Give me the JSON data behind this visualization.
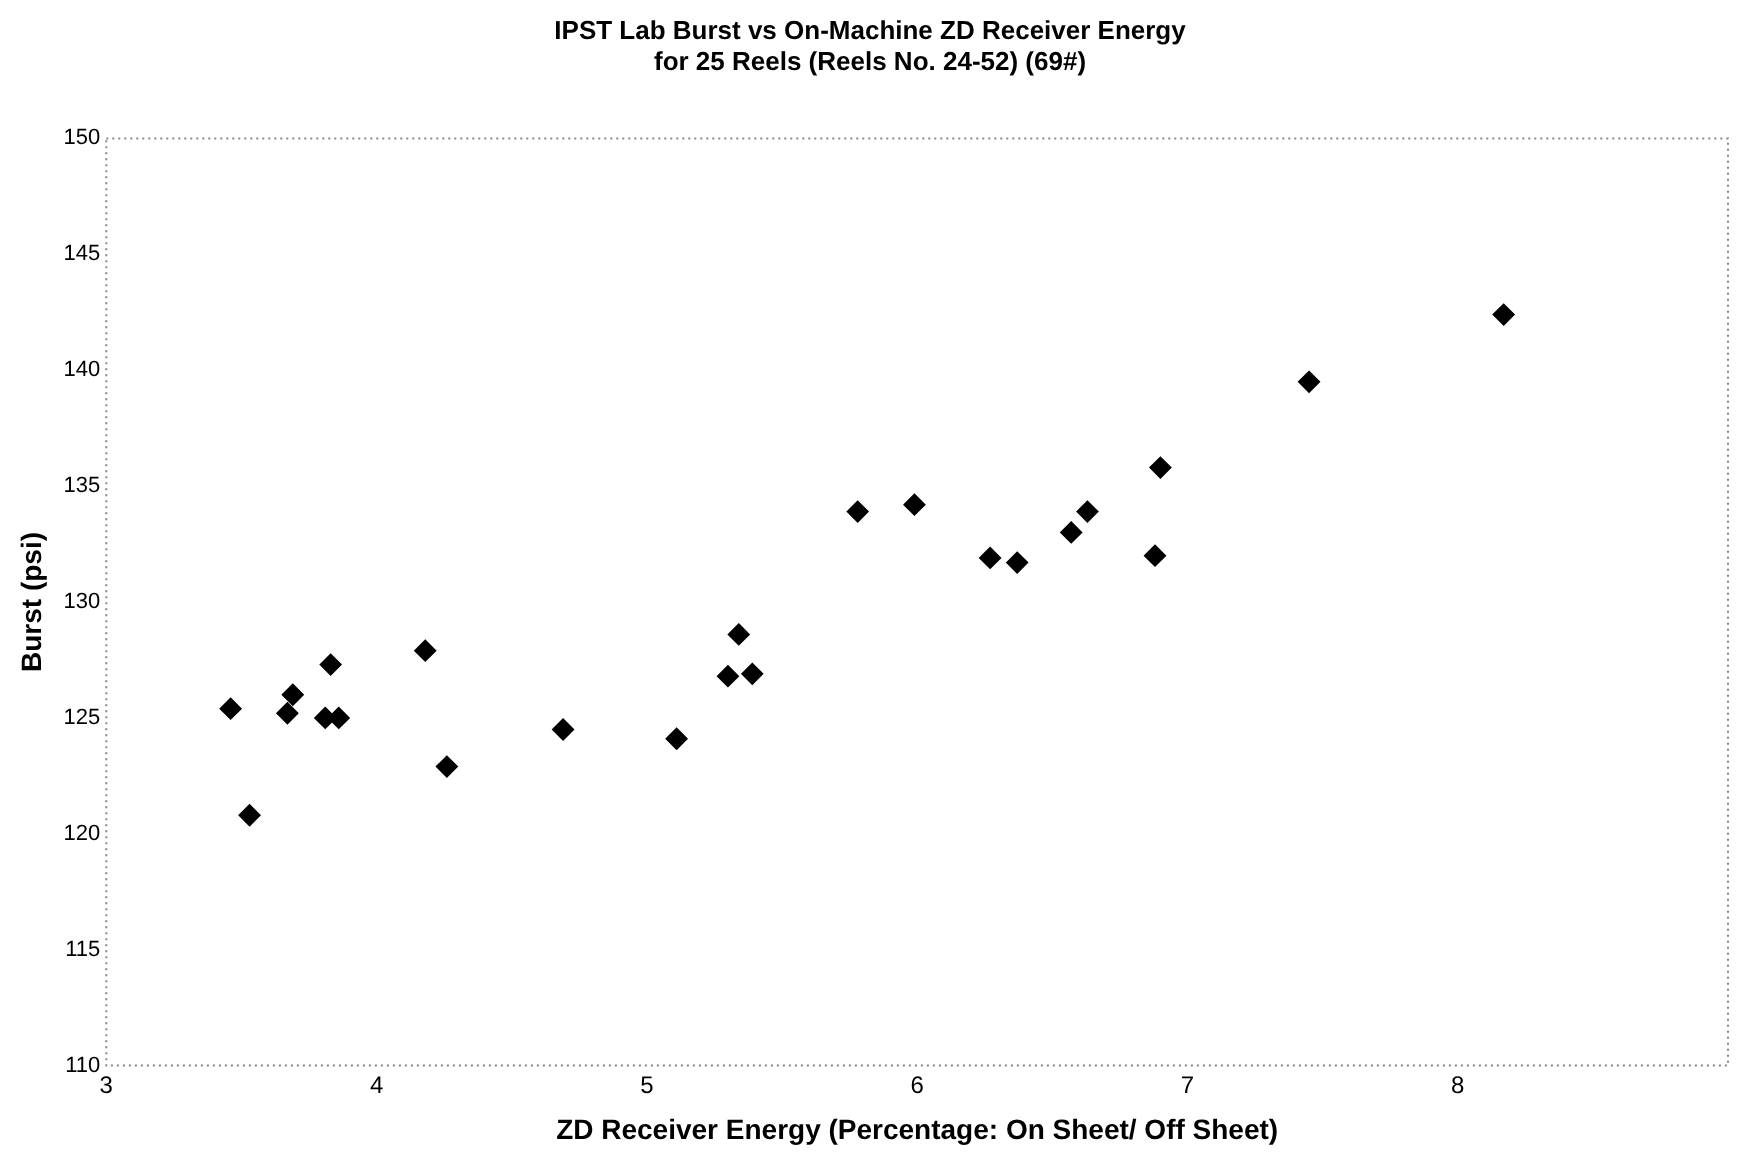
{
  "chart_data": {
    "type": "scatter",
    "title": "IPST Lab Burst vs On-Machine ZD Receiver Energy\nfor 25 Reels (Reels No. 24-52) (69#)",
    "xlabel": "ZD Receiver Energy (Percentage: On Sheet/ Off Sheet)",
    "ylabel": "Burst (psi)",
    "x": [
      3.46,
      3.53,
      3.67,
      3.69,
      3.83,
      3.81,
      3.86,
      4.18,
      4.26,
      4.69,
      5.11,
      5.3,
      5.34,
      5.39,
      5.78,
      5.99,
      6.27,
      6.37,
      6.57,
      6.63,
      6.88,
      6.9,
      7.45,
      8.17
    ],
    "series": [
      {
        "color": "#000000",
        "values": [
          125.4,
          120.8,
          125.2,
          126.0,
          127.3,
          125.0,
          125.0,
          127.9,
          122.9,
          124.5,
          124.1,
          126.8,
          128.6,
          126.9,
          133.9,
          134.2,
          131.9,
          131.7,
          133.0,
          133.9,
          132.0,
          135.8,
          139.5,
          142.4
        ]
      }
    ],
    "xlim": [
      3,
      9
    ],
    "xticks": [
      3,
      4,
      5,
      6,
      7,
      8
    ],
    "ylim": [
      110,
      150
    ],
    "yticks": [
      110,
      115,
      120,
      125,
      130,
      135,
      140,
      145,
      150
    ],
    "marker": "diamond",
    "grid": false,
    "legend": false
  }
}
